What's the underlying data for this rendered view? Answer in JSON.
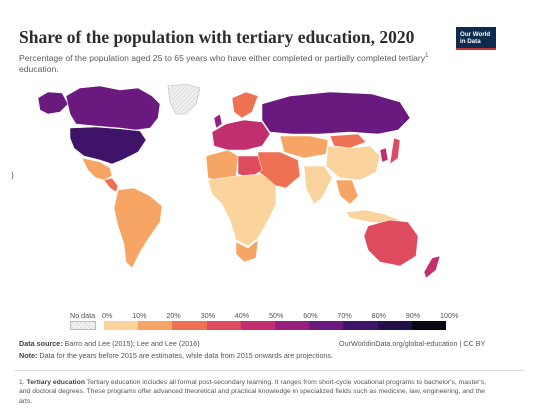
{
  "header": {
    "title": "Share of the population with tertiary education, 2020",
    "subtitle": "Percentage of the population aged 25 to 65 years who have either completed or partially completed tertiary",
    "subtitle_sup": "1",
    "subtitle_end": "education."
  },
  "logo": {
    "line1": "Our World",
    "line2": "in Data"
  },
  "legend": {
    "no_data_label": "No data",
    "tick_labels": [
      "0%",
      "10%",
      "20%",
      "30%",
      "40%",
      "50%",
      "60%",
      "70%",
      "80%",
      "90%",
      "100%"
    ],
    "colors": [
      "#fbd49d",
      "#f7a564",
      "#ee7154",
      "#de4a5e",
      "#c22f6e",
      "#95207d",
      "#6a1a7f",
      "#3f1468",
      "#231046",
      "#0a0714"
    ],
    "no_data_color": "#e8e8e8"
  },
  "source": {
    "label": "Data source:",
    "text": "Barro and Lee (2015); Lee and Lee (2016)",
    "url": "OurWorldinData.org/global-education | CC BY"
  },
  "note": {
    "label": "Note:",
    "text": "Data for the years before 2015 are estimates, while data from 2015 onwards are projections."
  },
  "footnote": {
    "number": "1.",
    "term": "Tertiary education",
    "text": "Tertiary education includes all formal post-secondary learning. It ranges from short-cycle vocational programs to bachelor's, master's, and doctoral degrees. These programs offer advanced theoretical and practical knowledge in specialized fields such as medicine, law, engineering, and the arts."
  },
  "map_regions": [
    {
      "name": "canada",
      "color": "#6a1a7f"
    },
    {
      "name": "alaska",
      "color": "#6a1a7f"
    },
    {
      "name": "greenland",
      "color": "#e8e8e8"
    },
    {
      "name": "usa",
      "color": "#3f1468"
    },
    {
      "name": "mexico",
      "color": "#f7a564"
    },
    {
      "name": "central-america",
      "color": "#ee7154"
    },
    {
      "name": "south-america",
      "color": "#f7a564"
    },
    {
      "name": "europe-west",
      "color": "#c22f6e"
    },
    {
      "name": "uk",
      "color": "#95207d"
    },
    {
      "name": "scandinavia",
      "color": "#ee7154"
    },
    {
      "name": "russia",
      "color": "#6a1a7f"
    },
    {
      "name": "central-asia",
      "color": "#f7a564"
    },
    {
      "name": "middle-east",
      "color": "#ee7154"
    },
    {
      "name": "north-africa",
      "color": "#f7a564"
    },
    {
      "name": "libya",
      "color": "#de4a5e"
    },
    {
      "name": "africa",
      "color": "#fbd49d"
    },
    {
      "name": "south-africa",
      "color": "#f7a564"
    },
    {
      "name": "china",
      "color": "#fbd49d"
    },
    {
      "name": "india",
      "color": "#fbd49d"
    },
    {
      "name": "southeast-asia",
      "color": "#f7a564"
    },
    {
      "name": "japan",
      "color": "#de4a5e"
    },
    {
      "name": "korea",
      "color": "#c22f6e"
    },
    {
      "name": "mongolia",
      "color": "#ee7154"
    },
    {
      "name": "indonesia",
      "color": "#fbd49d"
    },
    {
      "name": "australia",
      "color": "#de4a5e"
    },
    {
      "name": "new-zealand",
      "color": "#c22f6e"
    }
  ]
}
